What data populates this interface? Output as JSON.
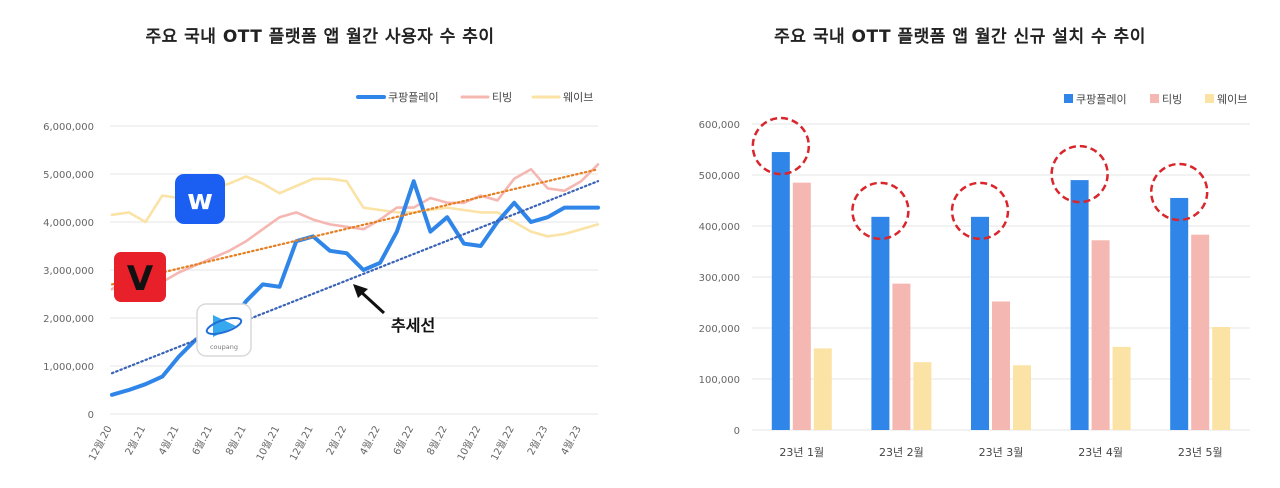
{
  "chart_data": [
    {
      "type": "line",
      "title": "주요 국내 OTT 플랫폼 앱 월간 사용자 수 추이",
      "x": [
        "12월.20",
        "1월.21",
        "2월.21",
        "3월.21",
        "4월.21",
        "5월.21",
        "6월.21",
        "7월.21",
        "8월.21",
        "9월.21",
        "10월.21",
        "11월.21",
        "12월.21",
        "1월.22",
        "2월.22",
        "3월.22",
        "4월.22",
        "5월.22",
        "6월.22",
        "7월.22",
        "8월.22",
        "9월.22",
        "10월.22",
        "11월.22",
        "12월.22",
        "1월.23",
        "2월.23",
        "3월.23",
        "4월.23",
        "5월.23"
      ],
      "x_tick_labels": [
        "12월.20",
        "2월.21",
        "4월.21",
        "6월.21",
        "8월.21",
        "10월.21",
        "12월.21",
        "2월.22",
        "4월.22",
        "6월.22",
        "8월.22",
        "10월.22",
        "12월.22",
        "2월.23",
        "4월.23"
      ],
      "series": [
        {
          "name": "쿠팡플레이",
          "color": "#2f86e8",
          "values": [
            400000,
            500000,
            620000,
            780000,
            1200000,
            1550000,
            1700000,
            1850000,
            2350000,
            2700000,
            2650000,
            3600000,
            3700000,
            3400000,
            3350000,
            3000000,
            3150000,
            3800000,
            4850000,
            3800000,
            4100000,
            3550000,
            3500000,
            4000000,
            4400000,
            4000000,
            4100000,
            4300000,
            4300000,
            4300000
          ]
        },
        {
          "name": "티빙",
          "color": "#f5b7b1",
          "values": [
            2600000,
            2850000,
            3000000,
            2750000,
            2950000,
            3100000,
            3250000,
            3400000,
            3600000,
            3850000,
            4100000,
            4200000,
            4050000,
            3950000,
            3900000,
            3850000,
            4050000,
            4300000,
            4300000,
            4500000,
            4400000,
            4400000,
            4550000,
            4450000,
            4900000,
            5100000,
            4700000,
            4650000,
            4850000,
            5200000
          ]
        },
        {
          "name": "웨이브",
          "color": "#fbe3a6",
          "values": [
            4150000,
            4200000,
            4000000,
            4550000,
            4500000,
            4600000,
            4700000,
            4800000,
            4950000,
            4800000,
            4600000,
            4750000,
            4900000,
            4900000,
            4850000,
            4300000,
            4250000,
            4200000,
            4200000,
            4250000,
            4300000,
            4250000,
            4200000,
            4200000,
            4000000,
            3800000,
            3700000,
            3750000,
            3850000,
            3950000
          ]
        }
      ],
      "trendlines": [
        {
          "name": "쿠팡플레이 추세선",
          "color": "#3a63b8",
          "values": [
            850000,
            4850000
          ]
        },
        {
          "name": "티빙 추세선",
          "color": "#e67e22",
          "values": [
            2700000,
            5100000
          ]
        }
      ],
      "annotation": "추세선",
      "ylim": [
        0,
        6000000
      ],
      "yticks": [
        "0",
        "1,000,000",
        "2,000,000",
        "3,000,000",
        "4,000,000",
        "5,000,000",
        "6,000,000"
      ],
      "grid": true,
      "legend_position": "top-right"
    },
    {
      "type": "bar",
      "title": "주요 국내 OTT 플랫폼 앱 월간 신규 설치 수 추이",
      "categories": [
        "23년 1월",
        "23년 2월",
        "23년 3월",
        "23년 4월",
        "23년 5월"
      ],
      "series": [
        {
          "name": "쿠팡플레이",
          "color": "#2f86e8",
          "values": [
            545000,
            418000,
            418000,
            490000,
            455000
          ]
        },
        {
          "name": "티빙",
          "color": "#f5b7b1",
          "values": [
            485000,
            287000,
            252000,
            372000,
            383000
          ]
        },
        {
          "name": "웨이브",
          "color": "#fbe3a6",
          "values": [
            160000,
            133000,
            127000,
            163000,
            202000
          ]
        }
      ],
      "highlight_series": "쿠팡플레이",
      "ylim": [
        0,
        600000
      ],
      "yticks": [
        "0",
        "100,000",
        "200,000",
        "300,000",
        "400,000",
        "500,000",
        "600,000"
      ],
      "grid": true,
      "legend_position": "top-right"
    }
  ],
  "logos": {
    "wavve": {
      "letter": "w",
      "color": "#1b5ff2"
    },
    "tving": {
      "letter": "V",
      "color": "#e8202a"
    },
    "coupang": {
      "word": "coupang",
      "color": "#2a8de8"
    }
  }
}
